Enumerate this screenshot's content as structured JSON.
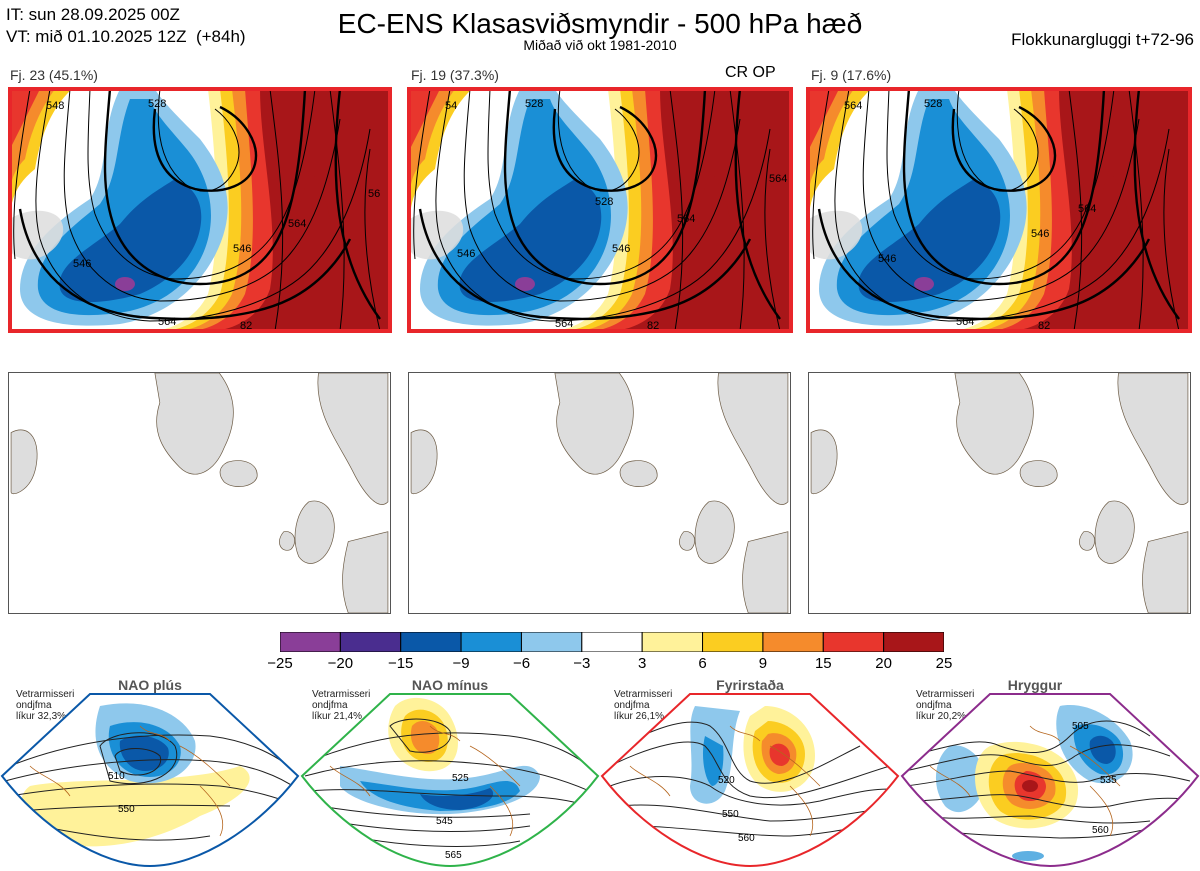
{
  "header": {
    "it_line": "IT: sun 28.09.2025 00Z",
    "vt_line": "VT: mið 01.10.2025 12Z  (+84h)",
    "title": "EC-ENS Klasasviðsmyndir - 500 hPa hæð",
    "subtitle": "Miðað við okt 1981-2010",
    "window": "Flokkunargluggi t+72-96"
  },
  "clusters": [
    {
      "label": "Fj. 23 (45.1%)",
      "contours": [
        "548",
        "528",
        "546",
        "564",
        "546",
        "56",
        "564",
        "82"
      ]
    },
    {
      "label": "Fj. 19 (37.3%)",
      "contours": [
        "54",
        "528",
        "528",
        "546",
        "564",
        "546",
        "564",
        "564",
        "82"
      ],
      "op_label": "CR OP"
    },
    {
      "label": "Fj. 9 (17.6%)",
      "contours": [
        "564",
        "528",
        "546",
        "546",
        "564",
        "564",
        "82"
      ]
    }
  ],
  "colorbar": {
    "ticks": [
      "−25",
      "−20",
      "−15",
      "−9",
      "−6",
      "−3",
      "3",
      "6",
      "9",
      "15",
      "20",
      "25"
    ],
    "colors": [
      "#8a3e98",
      "#4a2d8f",
      "#0a58a8",
      "#1a8fd6",
      "#8ec8ec",
      "#ffffff",
      "#fff29a",
      "#fbcd21",
      "#f58b2c",
      "#e8362d",
      "#a81619"
    ]
  },
  "regimes": [
    {
      "name": "NAO plús",
      "text": [
        "Vetrarmisseri",
        "ondjfma",
        "líkur 32,3%"
      ],
      "dot_color": "#0a58a8",
      "frame_color": "#0a58a8",
      "contours": [
        "510",
        "550"
      ]
    },
    {
      "name": "NAO mínus",
      "text": [
        "Vetrarmisseri",
        "ondjfma",
        "líkur 21,4%"
      ],
      "dot_color": "#2fb34a",
      "frame_color": "#2fb34a",
      "contours": [
        "525",
        "545",
        "565"
      ]
    },
    {
      "name": "Fyrirstaða",
      "text": [
        "Vetrarmisseri",
        "ondjfma",
        "líkur 26,1%"
      ],
      "dot_color": "#e8262a",
      "frame_color": "#e8262a",
      "contours": [
        "520",
        "550",
        "560"
      ]
    },
    {
      "name": "Hryggur",
      "text": [
        "Vetrarmisseri",
        "ondjfma",
        "líkur 20,2%"
      ],
      "dot_color": "#ee7be8",
      "frame_color": "#8c2c8c",
      "contours": [
        "505",
        "535",
        "560"
      ]
    }
  ]
}
